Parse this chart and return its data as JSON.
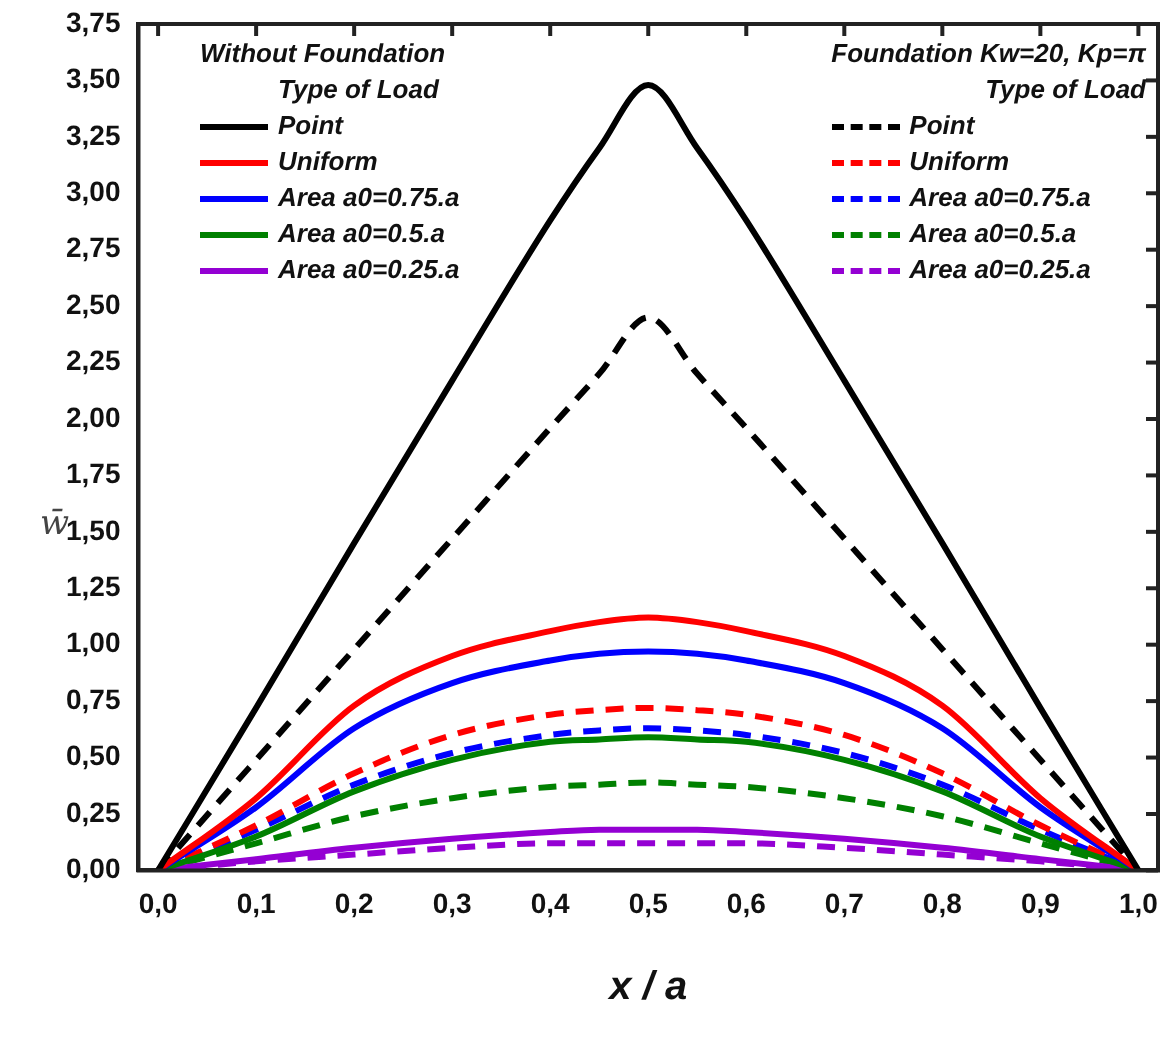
{
  "chart_data": {
    "type": "line",
    "xlabel": "x / a",
    "ylabel": "w̄",
    "legend_title": "Type of Load",
    "legend": "top",
    "annotations": [
      "Without Foundation",
      "Foundation Kw=20, Kp=π"
    ],
    "x": [
      0,
      0.1,
      0.2,
      0.3,
      0.4,
      0.45,
      0.5,
      0.55,
      0.6,
      0.7,
      0.8,
      0.9,
      1
    ],
    "xlim": [
      -0.02,
      1.02
    ],
    "ylim": [
      0,
      3.75
    ],
    "xticks": [
      {
        "value": 0,
        "label": "0,0"
      },
      {
        "value": 0.1,
        "label": "0,1"
      },
      {
        "value": 0.2,
        "label": "0,2"
      },
      {
        "value": 0.3,
        "label": "0,3"
      },
      {
        "value": 0.4,
        "label": "0,4"
      },
      {
        "value": 0.5,
        "label": "0,5"
      },
      {
        "value": 0.6,
        "label": "0,6"
      },
      {
        "value": 0.7,
        "label": "0,7"
      },
      {
        "value": 0.8,
        "label": "0,8"
      },
      {
        "value": 0.9,
        "label": "0,9"
      },
      {
        "value": 1,
        "label": "1,0"
      }
    ],
    "yticks": [
      {
        "value": 0,
        "label": "0,00"
      },
      {
        "value": 0.25,
        "label": "0,25"
      },
      {
        "value": 0.5,
        "label": "0,50"
      },
      {
        "value": 0.75,
        "label": "0,75"
      },
      {
        "value": 1,
        "label": "1,00"
      },
      {
        "value": 1.25,
        "label": "1,25"
      },
      {
        "value": 1.5,
        "label": "1,50"
      },
      {
        "value": 1.75,
        "label": "1,75"
      },
      {
        "value": 2,
        "label": "2,00"
      },
      {
        "value": 2.25,
        "label": "2,25"
      },
      {
        "value": 2.5,
        "label": "2,50"
      },
      {
        "value": 2.75,
        "label": "2,75"
      },
      {
        "value": 3,
        "label": "3,00"
      },
      {
        "value": 3.25,
        "label": "3,25"
      },
      {
        "value": 3.5,
        "label": "3,50"
      },
      {
        "value": 3.75,
        "label": "3,75"
      }
    ],
    "series": [
      {
        "name": "Point",
        "color": "#000000",
        "line_style": "solid",
        "values": [
          0,
          0.72,
          1.45,
          2.17,
          2.88,
          3.2,
          3.48,
          3.2,
          2.88,
          2.17,
          1.45,
          0.72,
          0
        ]
      },
      {
        "name": "Uniform",
        "color": "#ff0000",
        "line_style": "solid",
        "values": [
          0,
          0.32,
          0.73,
          0.95,
          1.06,
          1.1,
          1.12,
          1.1,
          1.06,
          0.95,
          0.73,
          0.32,
          0
        ]
      },
      {
        "name": "Area a0=0.75.a",
        "color": "#0000ff",
        "line_style": "solid",
        "values": [
          0,
          0.28,
          0.63,
          0.83,
          0.93,
          0.96,
          0.97,
          0.96,
          0.93,
          0.83,
          0.63,
          0.28,
          0
        ]
      },
      {
        "name": "Area a0=0.5.a",
        "color": "#008000",
        "line_style": "solid",
        "values": [
          0,
          0.15,
          0.35,
          0.49,
          0.57,
          0.58,
          0.59,
          0.58,
          0.57,
          0.49,
          0.35,
          0.15,
          0
        ]
      },
      {
        "name": "Area a0=0.25.a",
        "color": "#9400d3",
        "line_style": "solid",
        "values": [
          0,
          0.05,
          0.1,
          0.14,
          0.17,
          0.18,
          0.18,
          0.18,
          0.17,
          0.14,
          0.1,
          0.05,
          0
        ]
      },
      {
        "name": "Point",
        "color": "#000000",
        "line_style": "dashed",
        "values": [
          0,
          0.49,
          0.98,
          1.47,
          1.96,
          2.2,
          2.45,
          2.2,
          1.96,
          1.47,
          0.98,
          0.49,
          0
        ]
      },
      {
        "name": "Uniform",
        "color": "#ff0000",
        "line_style": "dashed",
        "values": [
          0,
          0.2,
          0.43,
          0.6,
          0.69,
          0.71,
          0.72,
          0.71,
          0.69,
          0.6,
          0.43,
          0.2,
          0
        ]
      },
      {
        "name": "Area a0=0.75.a",
        "color": "#0000ff",
        "line_style": "dashed",
        "values": [
          0,
          0.18,
          0.38,
          0.52,
          0.6,
          0.62,
          0.63,
          0.62,
          0.6,
          0.52,
          0.38,
          0.18,
          0
        ]
      },
      {
        "name": "Area a0=0.5.a",
        "color": "#008000",
        "line_style": "dashed",
        "values": [
          0,
          0.12,
          0.24,
          0.32,
          0.37,
          0.38,
          0.39,
          0.38,
          0.37,
          0.32,
          0.24,
          0.12,
          0
        ]
      },
      {
        "name": "Area a0=0.25.a",
        "color": "#9400d3",
        "line_style": "dashed",
        "values": [
          0,
          0.04,
          0.07,
          0.1,
          0.12,
          0.12,
          0.12,
          0.12,
          0.12,
          0.1,
          0.07,
          0.04,
          0
        ]
      }
    ]
  }
}
